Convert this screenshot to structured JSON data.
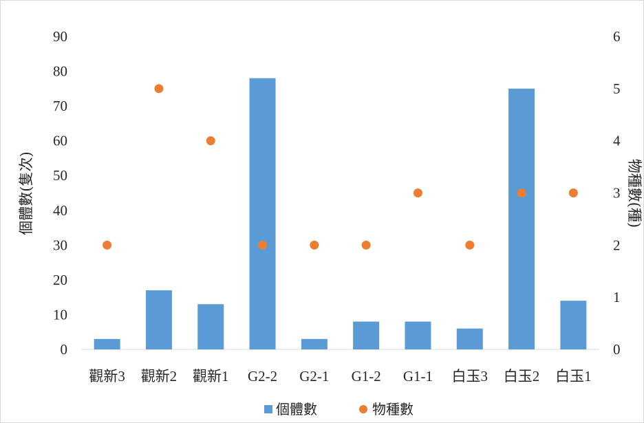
{
  "chart_data": {
    "type": "bar",
    "categories": [
      "觀新3",
      "觀新2",
      "觀新1",
      "G2-2",
      "G2-1",
      "G1-2",
      "G1-1",
      "白玉3",
      "白玉2",
      "白玉1"
    ],
    "series": [
      {
        "name": "個體數",
        "type": "bar",
        "axis": "left",
        "color": "#5b9bd5",
        "values": [
          3,
          17,
          13,
          78,
          3,
          8,
          8,
          6,
          75,
          14
        ]
      },
      {
        "name": "物種數",
        "type": "scatter",
        "axis": "right",
        "color": "#ed7d31",
        "values": [
          2,
          5,
          4,
          2,
          2,
          2,
          3,
          2,
          3,
          3
        ]
      }
    ],
    "ylabel": "個體數(隻次)",
    "y2label": "物種數(種)",
    "ylim": [
      0,
      90
    ],
    "y2lim": [
      0,
      6
    ],
    "yticks": [
      0,
      10,
      20,
      30,
      40,
      50,
      60,
      70,
      80,
      90
    ],
    "y2ticks": [
      0,
      1,
      2,
      3,
      4,
      5,
      6
    ],
    "grid": false,
    "legend_position": "bottom"
  }
}
